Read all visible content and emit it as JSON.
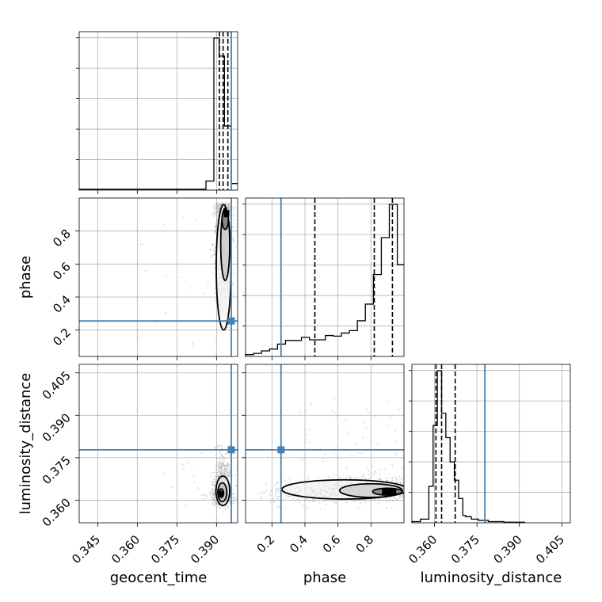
{
  "chart_data": {
    "type": "corner",
    "parameters": [
      "geocent_time",
      "phase",
      "luminosity_distance"
    ],
    "ranges": {
      "geocent_time": [
        0.338,
        0.398
      ],
      "phase": [
        0.04,
        1.0
      ],
      "luminosity_distance": [
        0.352,
        0.408
      ]
    },
    "ticks": {
      "geocent_time": [
        "0.345",
        "0.360",
        "0.375",
        "0.390"
      ],
      "phase": [
        "0.2",
        "0.4",
        "0.6",
        "0.8"
      ],
      "luminosity_distance": [
        "0.360",
        "0.375",
        "0.390",
        "0.405"
      ]
    },
    "truths": {
      "geocent_time": 0.3956,
      "phase": 0.255,
      "luminosity_distance": 0.3778
    },
    "quantiles": {
      "geocent_time": [
        0.3911,
        0.3925,
        0.3943
      ],
      "phase": [
        0.46,
        0.82,
        0.93
      ],
      "luminosity_distance": [
        0.3605,
        0.3625,
        0.3673
      ]
    },
    "colors": {
      "truth": "#4682b4",
      "contour": "#000000",
      "points": "#aaaaaa"
    },
    "grid": true,
    "histograms": {
      "geocent_time": {
        "edges": [
          0.338,
          0.386,
          0.389,
          0.391,
          0.393,
          0.3955,
          0.398
        ],
        "counts": [
          1,
          11,
          185,
          163,
          78,
          8
        ]
      },
      "phase": {
        "edges": [
          0.04,
          0.0884,
          0.1368,
          0.1852,
          0.2336,
          0.282,
          0.3304,
          0.3788,
          0.4272,
          0.4756,
          0.524,
          0.5724,
          0.6208,
          0.6692,
          0.7176,
          0.766,
          0.8144,
          0.8628,
          0.9112,
          0.9596,
          1.0
        ],
        "counts": [
          3,
          5,
          9,
          12,
          20,
          26,
          26,
          31,
          27,
          27,
          34,
          33,
          38,
          42,
          58,
          85,
          133,
          193,
          247,
          149
        ]
      },
      "luminosity_distance": {
        "edges": [
          0.352,
          0.355,
          0.358,
          0.3595,
          0.361,
          0.3625,
          0.364,
          0.3655,
          0.367,
          0.3685,
          0.37,
          0.371,
          0.373,
          0.3755,
          0.379,
          0.3845,
          0.392
        ],
        "counts": [
          2,
          6,
          60,
          160,
          250,
          180,
          140,
          100,
          70,
          40,
          12,
          10,
          6,
          4,
          2,
          1
        ]
      }
    }
  }
}
